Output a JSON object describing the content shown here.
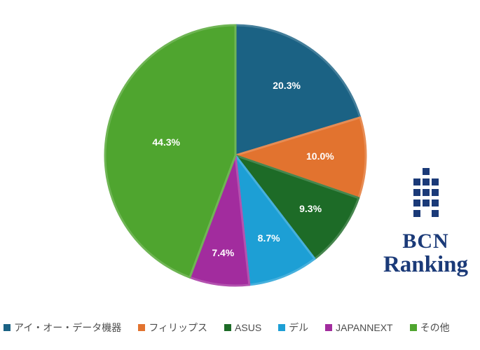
{
  "chart_data": {
    "type": "pie",
    "title": "",
    "start_angle": "12-oclock",
    "direction": "clockwise",
    "value_format": "percent",
    "legend_position": "bottom",
    "slices": [
      {
        "label": "アイ・オー・データ機器",
        "value": 20.3,
        "display_value": "20.3%",
        "color": "#1b6284"
      },
      {
        "label": "フィリップス",
        "value": 10.0,
        "display_value": "10.0%",
        "color": "#e2732f"
      },
      {
        "label": "ASUS",
        "value": 9.3,
        "display_value": "9.3%",
        "color": "#1d6b27"
      },
      {
        "label": "デル",
        "value": 8.7,
        "display_value": "8.7%",
        "color": "#1d9fd5"
      },
      {
        "label": "JAPANNEXT",
        "value": 7.4,
        "display_value": "7.4%",
        "color": "#a22c9e"
      },
      {
        "label": "その他",
        "value": 44.3,
        "display_value": "44.3%",
        "color": "#4fa52f"
      }
    ]
  },
  "logo": {
    "line1": "BCN",
    "line2": "Ranking",
    "color": "#1b3a78",
    "icon": "building-squares-icon"
  }
}
